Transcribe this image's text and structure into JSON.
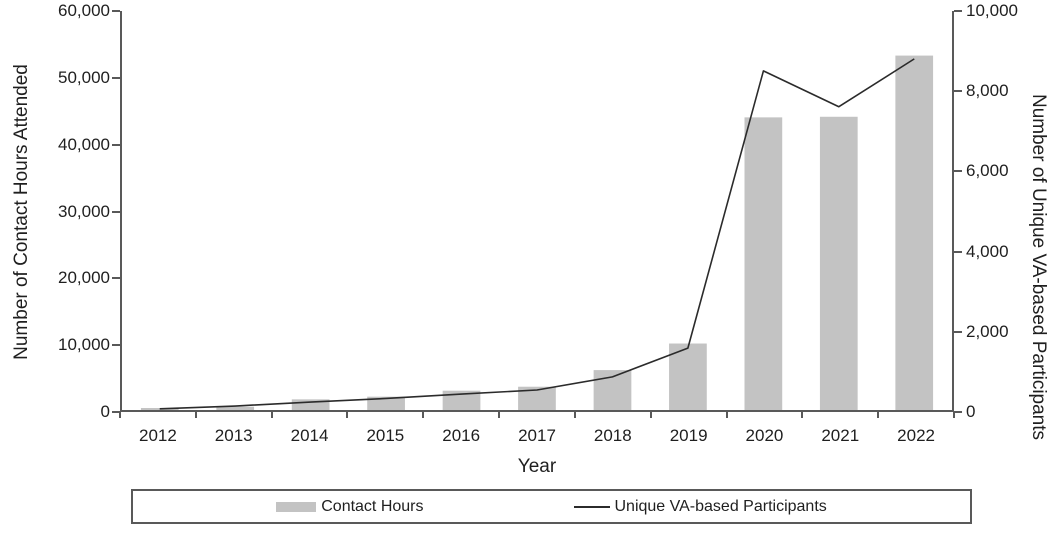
{
  "colors": {
    "bar": "#c3c3c3",
    "line": "#2b2b2b",
    "axis": "#595959",
    "text": "#1f1f1f",
    "background": "#ffffff"
  },
  "chart_data": {
    "type": "combo-bar-line",
    "categories": [
      "2012",
      "2013",
      "2014",
      "2015",
      "2016",
      "2017",
      "2018",
      "2019",
      "2020",
      "2021",
      "2022"
    ],
    "series": [
      {
        "name": "Contact Hours",
        "type": "bar",
        "axis": "left",
        "values": [
          300,
          500,
          1600,
          2000,
          2900,
          3500,
          6000,
          10000,
          44000,
          44100,
          53300
        ]
      },
      {
        "name": "Unique VA-based Participants",
        "type": "line",
        "axis": "right",
        "values": [
          30,
          100,
          200,
          290,
          400,
          500,
          830,
          1550,
          8500,
          7600,
          8800
        ]
      }
    ],
    "left_axis": {
      "title": "Number of Contact Hours Attended",
      "min": 0,
      "max": 60000,
      "tick_labels": [
        "0",
        "10,000",
        "20,000",
        "30,000",
        "40,000",
        "50,000",
        "60,000"
      ]
    },
    "right_axis": {
      "title": "Number of Unique VA-based Participants",
      "min": 0,
      "max": 10000,
      "tick_labels": [
        "0",
        "2,000",
        "4,000",
        "6,000",
        "8,000",
        "10,000"
      ]
    },
    "x_axis": {
      "title": "Year",
      "tick_labels": [
        "2012",
        "2013",
        "2014",
        "2015",
        "2016",
        "2017",
        "2018",
        "2019",
        "2020",
        "2021",
        "2022"
      ]
    },
    "legend": {
      "position": "bottom",
      "items": [
        {
          "label": "Contact Hours",
          "marker": "bar-swatch"
        },
        {
          "label": "Unique VA-based Participants",
          "marker": "line-swatch"
        }
      ]
    },
    "grid": false
  }
}
